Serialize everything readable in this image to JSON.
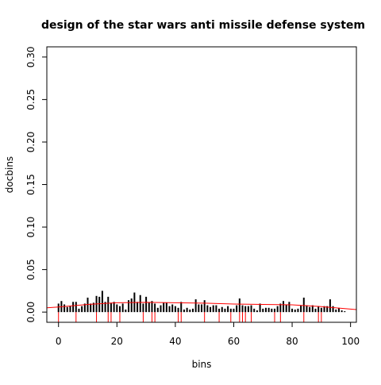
{
  "chart_data": {
    "type": "bar",
    "title": "design of the star wars anti missile defense system",
    "xlabel": "bins",
    "ylabel": "docbins",
    "xlim": [
      -4,
      102
    ],
    "ylim": [
      -0.012,
      0.312
    ],
    "x_ticks": [
      0,
      20,
      40,
      60,
      80,
      100
    ],
    "y_ticks": [
      0.0,
      0.05,
      0.1,
      0.15,
      0.2,
      0.25,
      0.3
    ],
    "x_tick_labels": [
      "0",
      "20",
      "40",
      "60",
      "80",
      "100"
    ],
    "y_tick_labels": [
      "0.00",
      "0.05",
      "0.10",
      "0.15",
      "0.20",
      "0.25",
      "0.30"
    ],
    "grid": false,
    "legend": "none",
    "bars": {
      "name": "",
      "color": "#000000",
      "x": [
        0,
        1,
        2,
        3,
        4,
        5,
        6,
        7,
        8,
        9,
        10,
        11,
        12,
        13,
        14,
        15,
        16,
        17,
        18,
        19,
        20,
        21,
        22,
        23,
        24,
        25,
        26,
        27,
        28,
        29,
        30,
        31,
        32,
        33,
        34,
        35,
        36,
        37,
        38,
        39,
        40,
        41,
        42,
        43,
        44,
        45,
        46,
        47,
        48,
        49,
        50,
        51,
        52,
        53,
        54,
        55,
        56,
        57,
        58,
        59,
        60,
        61,
        62,
        63,
        64,
        65,
        66,
        67,
        68,
        69,
        70,
        71,
        72,
        73,
        74,
        75,
        76,
        77,
        78,
        79,
        80,
        81,
        82,
        83,
        84,
        85,
        86,
        87,
        88,
        89,
        90,
        91,
        92,
        93,
        94,
        95,
        96,
        97,
        98
      ],
      "values": [
        0.01,
        0.013,
        0.009,
        0.006,
        0.007,
        0.012,
        0.012,
        0.004,
        0.007,
        0.01,
        0.017,
        0.01,
        0.011,
        0.019,
        0.018,
        0.025,
        0.012,
        0.018,
        0.011,
        0.012,
        0.009,
        0.007,
        0.01,
        0.003,
        0.014,
        0.016,
        0.023,
        0.012,
        0.02,
        0.01,
        0.018,
        0.011,
        0.013,
        0.01,
        0.005,
        0.008,
        0.011,
        0.011,
        0.007,
        0.009,
        0.007,
        0.005,
        0.012,
        0.003,
        0.005,
        0.003,
        0.004,
        0.015,
        0.009,
        0.009,
        0.014,
        0.008,
        0.006,
        0.008,
        0.008,
        0.004,
        0.006,
        0.004,
        0.007,
        0.004,
        0.004,
        0.008,
        0.016,
        0.008,
        0.007,
        0.007,
        0.008,
        0.004,
        0.002,
        0.01,
        0.004,
        0.005,
        0.005,
        0.004,
        0.004,
        0.007,
        0.01,
        0.013,
        0.009,
        0.012,
        0.004,
        0.003,
        0.004,
        0.008,
        0.017,
        0.008,
        0.006,
        0.008,
        0.004,
        0.007,
        0.005,
        0.007,
        0.007,
        0.015,
        0.007,
        0.003,
        0.005,
        0.002,
        0.001
      ]
    },
    "smooth_line": {
      "color": "#ff0000",
      "x": [
        -4,
        0,
        10,
        20,
        30,
        40,
        50,
        60,
        70,
        80,
        90,
        100,
        102
      ],
      "values": [
        0.005,
        0.006,
        0.009,
        0.011,
        0.0115,
        0.011,
        0.0105,
        0.0095,
        0.009,
        0.0085,
        0.0065,
        0.0035,
        0.003
      ]
    },
    "rug": {
      "color": "#ff0000",
      "x": [
        0,
        6,
        13,
        17,
        18,
        21,
        29,
        32,
        33,
        41,
        42,
        50,
        55,
        59,
        62,
        63,
        64,
        66,
        74,
        76,
        84,
        89,
        90
      ]
    }
  }
}
